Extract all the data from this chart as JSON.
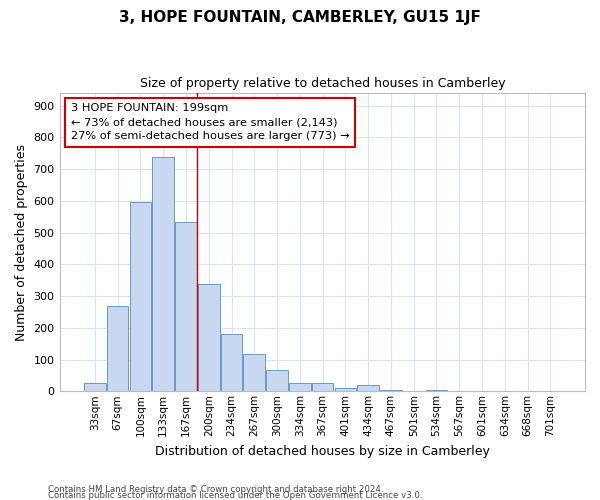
{
  "title": "3, HOPE FOUNTAIN, CAMBERLEY, GU15 1JF",
  "subtitle": "Size of property relative to detached houses in Camberley",
  "xlabel": "Distribution of detached houses by size in Camberley",
  "ylabel": "Number of detached properties",
  "bar_color": "#c8d8f0",
  "bar_edge_color": "#6699cc",
  "categories": [
    "33sqm",
    "67sqm",
    "100sqm",
    "133sqm",
    "167sqm",
    "200sqm",
    "234sqm",
    "267sqm",
    "300sqm",
    "334sqm",
    "367sqm",
    "401sqm",
    "434sqm",
    "467sqm",
    "501sqm",
    "534sqm",
    "567sqm",
    "601sqm",
    "634sqm",
    "668sqm",
    "701sqm"
  ],
  "values": [
    25,
    270,
    597,
    737,
    535,
    338,
    181,
    116,
    67,
    25,
    25,
    11,
    20,
    5,
    2,
    5,
    0,
    1,
    0,
    2,
    1
  ],
  "ylim": [
    0,
    940
  ],
  "yticks": [
    0,
    100,
    200,
    300,
    400,
    500,
    600,
    700,
    800,
    900
  ],
  "annotation_line1": "3 HOPE FOUNTAIN: 199sqm",
  "annotation_line2": "← 73% of detached houses are smaller (2,143)",
  "annotation_line3": "27% of semi-detached houses are larger (773) →",
  "vline_x": 5.0,
  "footer1": "Contains HM Land Registry data © Crown copyright and database right 2024.",
  "footer2": "Contains public sector information licensed under the Open Government Licence v3.0.",
  "background_color": "#ffffff",
  "grid_color": "#d8e4f0",
  "annotation_box_color": "#cc0000",
  "title_fontsize": 11,
  "subtitle_fontsize": 9,
  "ylabel_fontsize": 9,
  "xlabel_fontsize": 9,
  "tick_fontsize": 8,
  "xtick_fontsize": 7.5
}
